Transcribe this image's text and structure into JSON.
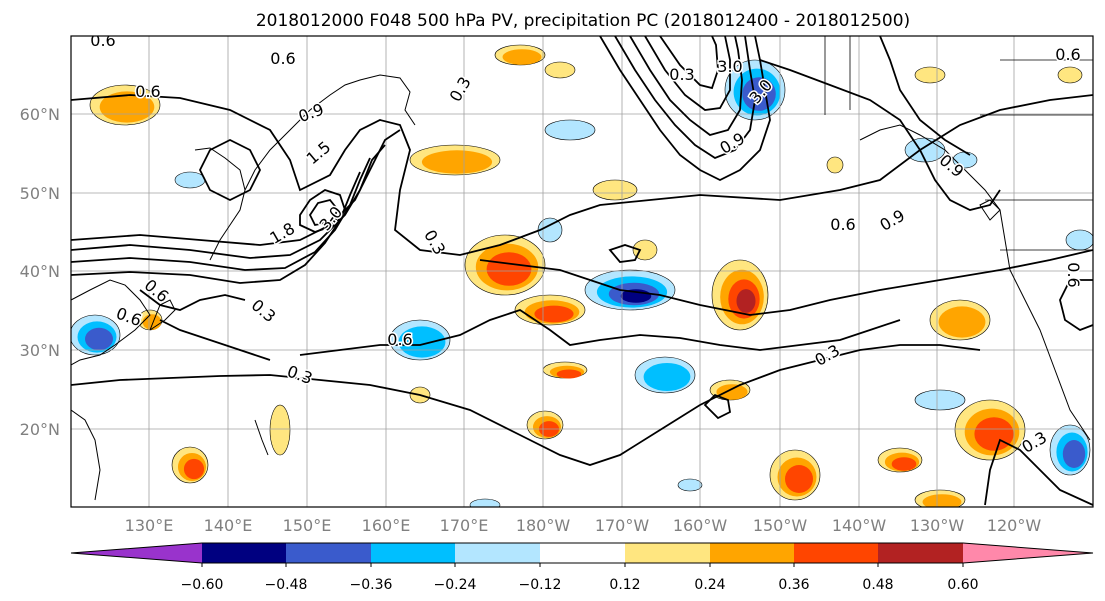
{
  "title": "2018012000 F048 500 hPa PV, precipitation PC (2018012400 - 2018012500)",
  "map": {
    "lat_labels": [
      "20°N",
      "30°N",
      "40°N",
      "50°N",
      "60°N"
    ],
    "lon_labels": [
      "130°E",
      "140°E",
      "150°E",
      "160°E",
      "170°E",
      "180°W",
      "170°W",
      "160°W",
      "150°W",
      "140°W",
      "130°W",
      "120°W"
    ],
    "contour_labels": [
      "0.6",
      "0.6",
      "0.6",
      "0.9",
      "1.5",
      "3.0",
      "0.3",
      "1.8",
      "3.0",
      "0.9",
      "3.0",
      "0.6",
      "0.6",
      "0.9",
      "0.3",
      "0.6",
      "0.3",
      "0.6",
      "0.6",
      "0.3",
      "0.3",
      "0.3",
      "0.9",
      "0.6",
      "0.3"
    ]
  },
  "colorbar": {
    "tick_labels": [
      "−0.60",
      "−0.48",
      "−0.36",
      "−0.24",
      "−0.12",
      "0.12",
      "0.24",
      "0.36",
      "0.48",
      "0.60"
    ],
    "colors": [
      "#9933cc",
      "#000080",
      "#3a5bcc",
      "#00bfff",
      "#b3e6ff",
      "#ffffff",
      "#ffe680",
      "#ffa500",
      "#ff4500",
      "#b22222",
      "#ff88aa"
    ]
  },
  "style": {
    "neg_colors": [
      "#b3e6ff",
      "#00bfff",
      "#3a5bcc",
      "#000080",
      "#9933cc"
    ],
    "pos_colors": [
      "#ffe680",
      "#ffa500",
      "#ff4500",
      "#b22222",
      "#ff88aa"
    ]
  }
}
